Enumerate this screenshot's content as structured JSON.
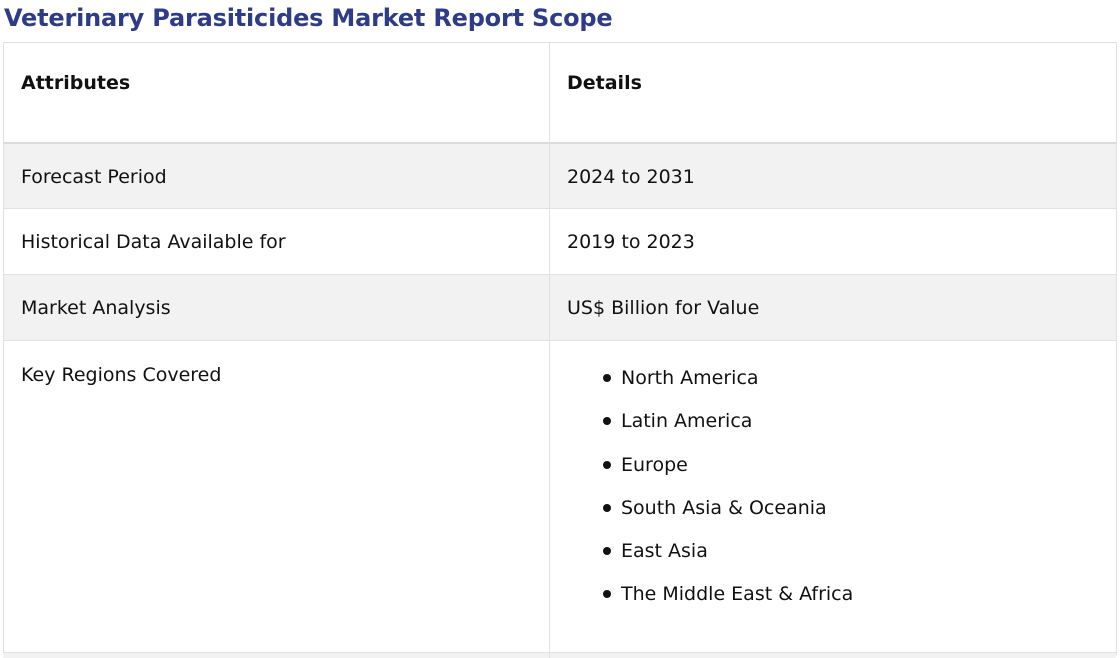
{
  "title": "Veterinary Parasiticides Market Report Scope",
  "table": {
    "headers": {
      "attributes": "Attributes",
      "details": "Details"
    },
    "rows": [
      {
        "attribute": "Forecast Period",
        "detail": "2024 to 2031"
      },
      {
        "attribute": "Historical Data Available for",
        "detail": "2019 to 2023"
      },
      {
        "attribute": "Market Analysis",
        "detail": "US$ Billion for Value"
      }
    ],
    "regions": {
      "attribute": "Key Regions Covered",
      "items": [
        "North America",
        "Latin America",
        "Europe",
        "South Asia & Oceania",
        "East Asia",
        "The Middle East & Africa"
      ]
    }
  },
  "colors": {
    "title": "#2e3b87",
    "row_shade": "#f2f2f2",
    "border": "#e1e1e1"
  }
}
